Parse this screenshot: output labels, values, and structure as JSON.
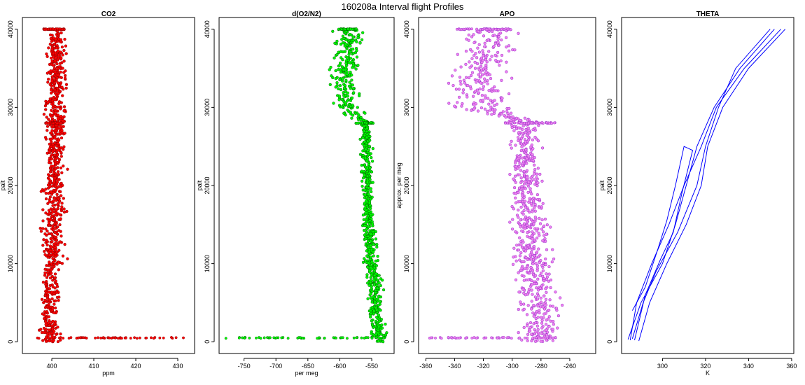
{
  "title": "160208a   Interval flight Profiles",
  "chart_data": [
    {
      "type": "scatter",
      "title": "CO2",
      "xlabel": "ppm",
      "ylabel": "palt",
      "xlim": [
        393,
        434
      ],
      "ylim": [
        -1500,
        41500
      ],
      "xticks": [
        400,
        410,
        420,
        430
      ],
      "yticks": [
        0,
        10000,
        20000,
        30000,
        40000
      ],
      "series": [
        {
          "color": "#ff0000",
          "edge": "#8b0000",
          "profile": [
            [
              0,
              400
            ],
            [
              500,
              399.6
            ],
            [
              5000,
              399.7
            ],
            [
              10000,
              400.1
            ],
            [
              15000,
              400.3
            ],
            [
              20000,
              400.6
            ],
            [
              25000,
              400.7
            ],
            [
              28000,
              400.9
            ],
            [
              30000,
              401.1
            ],
            [
              35000,
              401.0
            ],
            [
              40000,
              401.0
            ]
          ],
          "spread": [
            [
              0,
              1.3
            ],
            [
              10000,
              1.6
            ],
            [
              20000,
              1.6
            ],
            [
              28000,
              1.5
            ],
            [
              40000,
              1.2
            ]
          ],
          "levels": [
            {
              "y": 40000,
              "x": [
                398,
                403
              ]
            },
            {
              "y": 28000,
              "x": [
                398.5,
                402.5
              ]
            },
            {
              "y": 500,
              "x": [
                396.5,
                431.5
              ]
            }
          ]
        }
      ]
    },
    {
      "type": "scatter",
      "title": "d(O2/N2)",
      "xlabel": "per meg",
      "ylabel": "palt",
      "xlim": [
        -789,
        -515
      ],
      "ylim": [
        -1500,
        41500
      ],
      "xticks": [
        -750,
        -700,
        -650,
        -600,
        -550
      ],
      "yticks": [
        0,
        10000,
        20000,
        30000,
        40000
      ],
      "series": [
        {
          "color": "#00ff00",
          "edge": "#006400",
          "profile": [
            [
              0,
              -540
            ],
            [
              3000,
              -543
            ],
            [
              6000,
              -545
            ],
            [
              10000,
              -550
            ],
            [
              15000,
              -555
            ],
            [
              20000,
              -556
            ],
            [
              25000,
              -558
            ],
            [
              28000,
              -560
            ],
            [
              30000,
              -588
            ],
            [
              33000,
              -595
            ],
            [
              36000,
              -590
            ],
            [
              38000,
              -585
            ],
            [
              40000,
              -585
            ]
          ],
          "spread": [
            [
              0,
              8
            ],
            [
              10000,
              7
            ],
            [
              20000,
              5
            ],
            [
              28000,
              5
            ],
            [
              30000,
              15
            ],
            [
              40000,
              14
            ]
          ],
          "levels": [
            {
              "y": 40000,
              "x": [
                -603,
                -573
              ]
            },
            {
              "y": 28000,
              "x": [
                -575,
                -547
              ]
            },
            {
              "y": 500,
              "x": [
                -780,
                -530
              ]
            }
          ]
        }
      ]
    },
    {
      "type": "scatter",
      "title": "APO",
      "xlabel": "",
      "ylabel": "approx. per meg",
      "xlim": [
        -365,
        -242
      ],
      "ylim": [
        -1500,
        41500
      ],
      "xticks": [
        -360,
        -340,
        -320,
        -300,
        -280,
        -260
      ],
      "yticks": [
        0,
        10000,
        20000,
        30000,
        40000
      ],
      "series": [
        {
          "color": "#ee82ee",
          "edge": "#9932cc",
          "profile": [
            [
              0,
              -280
            ],
            [
              3000,
              -280
            ],
            [
              6000,
              -283
            ],
            [
              10000,
              -286
            ],
            [
              15000,
              -288
            ],
            [
              20000,
              -290
            ],
            [
              25000,
              -291
            ],
            [
              28000,
              -291
            ],
            [
              30000,
              -320
            ],
            [
              33000,
              -325
            ],
            [
              36000,
              -320
            ],
            [
              38000,
              -315
            ],
            [
              40000,
              -312
            ]
          ],
          "spread": [
            [
              0,
              9
            ],
            [
              10000,
              9
            ],
            [
              20000,
              7
            ],
            [
              28000,
              7
            ],
            [
              30000,
              14
            ],
            [
              40000,
              13
            ]
          ],
          "levels": [
            {
              "y": 40000,
              "x": [
                -340,
                -300
              ]
            },
            {
              "y": 28000,
              "x": [
                -305,
                -270
              ]
            },
            {
              "y": 500,
              "x": [
                -358,
                -268
              ]
            }
          ]
        }
      ]
    },
    {
      "type": "line",
      "title": "THETA",
      "xlabel": "K",
      "ylabel": "palt",
      "xlim": [
        281,
        361
      ],
      "ylim": [
        -1500,
        41500
      ],
      "xticks": [
        300,
        320,
        340,
        360
      ],
      "yticks": [
        0,
        10000,
        20000,
        30000,
        40000
      ],
      "series": [
        {
          "color": "#0000ff",
          "points": [
            [
              285,
              200
            ],
            [
              288,
              5000
            ],
            [
              295,
              10000
            ],
            [
              303,
              15000
            ],
            [
              310,
              20000
            ],
            [
              318,
              25000
            ],
            [
              325,
              30000
            ],
            [
              338,
              35000
            ],
            [
              355,
              40000
            ]
          ]
        },
        {
          "color": "#0000ff",
          "points": [
            [
              284,
              300
            ],
            [
              290,
              5000
            ],
            [
              300,
              10000
            ],
            [
              306,
              15000
            ],
            [
              311,
              20000
            ],
            [
              316,
              25000
            ],
            [
              324,
              30000
            ],
            [
              336,
              35000
            ],
            [
              352,
              40000
            ]
          ]
        },
        {
          "color": "#0000ff",
          "points": [
            [
              287,
              200
            ],
            [
              292,
              6000
            ],
            [
              299,
              10500
            ],
            [
              305,
              14000
            ],
            [
              309,
              19000
            ],
            [
              314,
              24500
            ],
            [
              310,
              25000
            ],
            [
              306,
              20000
            ],
            [
              302,
              15500
            ],
            [
              298,
              12000
            ],
            [
              292,
              7000
            ],
            [
              286,
              4000
            ]
          ]
        },
        {
          "color": "#0000ff",
          "points": [
            [
              289,
              100
            ],
            [
              294,
              5000
            ],
            [
              302,
              10000
            ],
            [
              311,
              15000
            ],
            [
              318,
              20000
            ],
            [
              321,
              25000
            ],
            [
              328,
              30000
            ],
            [
              340,
              35000
            ],
            [
              357,
              40000
            ]
          ]
        },
        {
          "color": "#0000ff",
          "points": [
            [
              286,
              400
            ],
            [
              291,
              5000
            ],
            [
              297,
              9000
            ],
            [
              307,
              14000
            ],
            [
              316,
              20000
            ],
            [
              320,
              25000
            ],
            [
              326,
              30000
            ],
            [
              334,
              35000
            ],
            [
              350,
              40000
            ]
          ]
        }
      ]
    }
  ]
}
